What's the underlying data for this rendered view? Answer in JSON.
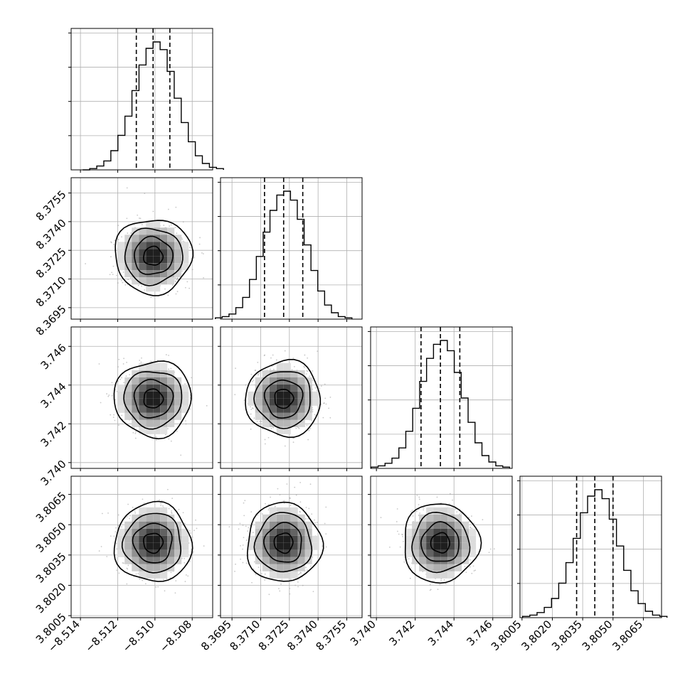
{
  "chart_data": {
    "type": "corner",
    "grid": true,
    "colors": {
      "line": "#000000",
      "grid": "#b0b0b0",
      "scatter": "#9a9a9a",
      "density_dark": "#000000"
    },
    "variables": [
      {
        "range": [
          -8.5145,
          -8.5069
        ],
        "ticks": [
          -8.514,
          -8.512,
          -8.51,
          -8.508
        ],
        "tick_labels": [
          "−8.514",
          "−8.512",
          "−8.510",
          "−8.508"
        ],
        "mean": -8.5101,
        "sigma": 0.0009,
        "quantiles": [
          -8.511,
          -8.5101,
          -8.5092
        ]
      },
      {
        "range": [
          8.3689,
          8.3763
        ],
        "ticks": [
          8.3695,
          8.371,
          8.3725,
          8.374,
          8.3755
        ],
        "tick_labels": [
          "8.3695",
          "8.3710",
          "8.3725",
          "8.3740",
          "8.3755"
        ],
        "mean": 8.3722,
        "sigma": 0.00085,
        "quantiles": [
          8.3712,
          8.3722,
          8.3732
        ]
      },
      {
        "range": [
          3.7397,
          3.747
        ],
        "ticks": [
          3.74,
          3.742,
          3.744,
          3.746
        ],
        "tick_labels": [
          "3.740",
          "3.742",
          "3.744",
          "3.746"
        ],
        "mean": 3.7433,
        "sigma": 0.00085,
        "quantiles": [
          3.7423,
          3.7433,
          3.7443
        ]
      },
      {
        "range": [
          3.8004,
          3.8074
        ],
        "ticks": [
          3.8005,
          3.802,
          3.8035,
          3.805,
          3.8065
        ],
        "tick_labels": [
          "3.8005",
          "3.8020",
          "3.8035",
          "3.8050",
          "3.8065"
        ],
        "mean": 3.8041,
        "sigma": 0.00085,
        "quantiles": [
          3.8032,
          3.8041,
          3.805
        ]
      }
    ],
    "histograms": [
      {
        "variable": 0,
        "counts": [
          0.0,
          0.01,
          0.03,
          0.07,
          0.15,
          0.27,
          0.42,
          0.62,
          0.82,
          0.95,
          1.0,
          0.94,
          0.77,
          0.56,
          0.37,
          0.22,
          0.11,
          0.05,
          0.02,
          0.01
        ]
      },
      {
        "variable": 1,
        "counts": [
          0.01,
          0.02,
          0.04,
          0.09,
          0.17,
          0.31,
          0.49,
          0.68,
          0.85,
          0.97,
          1.0,
          0.93,
          0.78,
          0.58,
          0.38,
          0.22,
          0.11,
          0.05,
          0.02,
          0.01
        ]
      },
      {
        "variable": 2,
        "counts": [
          0.01,
          0.02,
          0.04,
          0.08,
          0.16,
          0.29,
          0.47,
          0.68,
          0.86,
          0.97,
          1.0,
          0.92,
          0.75,
          0.55,
          0.36,
          0.2,
          0.1,
          0.05,
          0.02,
          0.01
        ]
      },
      {
        "variable": 3,
        "counts": [
          0.01,
          0.02,
          0.04,
          0.08,
          0.15,
          0.27,
          0.43,
          0.62,
          0.82,
          0.95,
          1.0,
          0.93,
          0.77,
          0.56,
          0.37,
          0.21,
          0.11,
          0.05,
          0.02,
          0.01
        ]
      }
    ],
    "density_panels": [
      {
        "x": 0,
        "y": 1
      },
      {
        "x": 0,
        "y": 2
      },
      {
        "x": 1,
        "y": 2
      },
      {
        "x": 0,
        "y": 3
      },
      {
        "x": 1,
        "y": 3
      },
      {
        "x": 2,
        "y": 3
      }
    ],
    "contour_levels_sigma": [
      0.5,
      1.0,
      1.5,
      2.0
    ]
  }
}
